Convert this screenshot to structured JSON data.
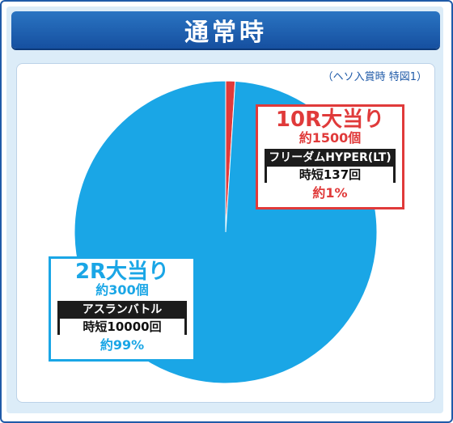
{
  "header": {
    "title": "通常時"
  },
  "note": "（ヘソ入賞時 特図1）",
  "colors": {
    "frame": "#1f5aa8",
    "blue_slice": "#1aa6e6",
    "red_slice": "#e03a3a"
  },
  "chart_data": {
    "type": "pie",
    "title": "通常時",
    "slices": [
      {
        "label": "10R大当り",
        "value": 1,
        "color": "#e03a3a"
      },
      {
        "label": "2R大当り",
        "value": 99,
        "color": "#1aa6e6"
      }
    ]
  },
  "callouts": {
    "r10": {
      "title": "10R大当り",
      "count": "約1500個",
      "mode": "フリーダムHYPER(LT)",
      "jitan": "時短137回",
      "pct": "約1%"
    },
    "r2": {
      "title": "2R大当り",
      "count": "約300個",
      "mode": "アスランバトル",
      "jitan": "時短10000回",
      "pct": "約99%"
    }
  }
}
